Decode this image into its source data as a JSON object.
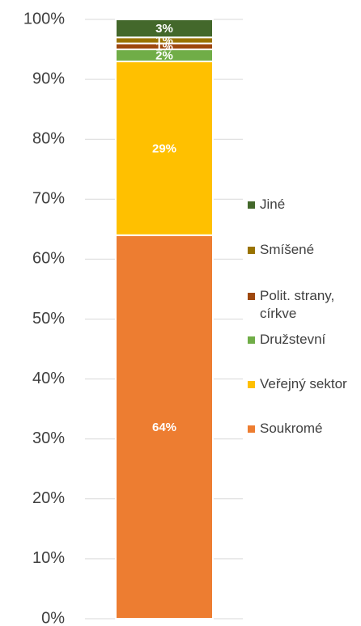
{
  "chart_data": {
    "type": "stacked_bar",
    "categories": [
      null
    ],
    "series": [
      {
        "name": "Soukromé",
        "color": "#ED7D31",
        "values": [
          64
        ],
        "value_labels": [
          "64%"
        ]
      },
      {
        "name": "Veřejný sektor",
        "color": "#FFC000",
        "values": [
          29
        ],
        "value_labels": [
          "29%"
        ]
      },
      {
        "name": "Družstevní",
        "color": "#70AD47",
        "values": [
          2
        ],
        "value_labels": [
          "2%"
        ]
      },
      {
        "name": "Polit. strany, církve",
        "color": "#9E480E",
        "values": [
          1
        ],
        "value_labels": [
          "1%"
        ]
      },
      {
        "name": "Smíšené",
        "color": "#997300",
        "values": [
          1
        ],
        "value_labels": [
          "1%"
        ]
      },
      {
        "name": "Jiné",
        "color": "#43682B",
        "values": [
          3
        ],
        "value_labels": [
          "3%"
        ]
      }
    ],
    "ylim": [
      0,
      100
    ],
    "yticks": [
      {
        "value": 0,
        "label": "0%"
      },
      {
        "value": 10,
        "label": "10%"
      },
      {
        "value": 20,
        "label": "20%"
      },
      {
        "value": 30,
        "label": "30%"
      },
      {
        "value": 40,
        "label": "40%"
      },
      {
        "value": 50,
        "label": "50%"
      },
      {
        "value": 60,
        "label": "60%"
      },
      {
        "value": 70,
        "label": "70%"
      },
      {
        "value": 80,
        "label": "80%"
      },
      {
        "value": 90,
        "label": "90%"
      },
      {
        "value": 100,
        "label": "100%"
      }
    ],
    "grid": true,
    "legend": "right"
  }
}
